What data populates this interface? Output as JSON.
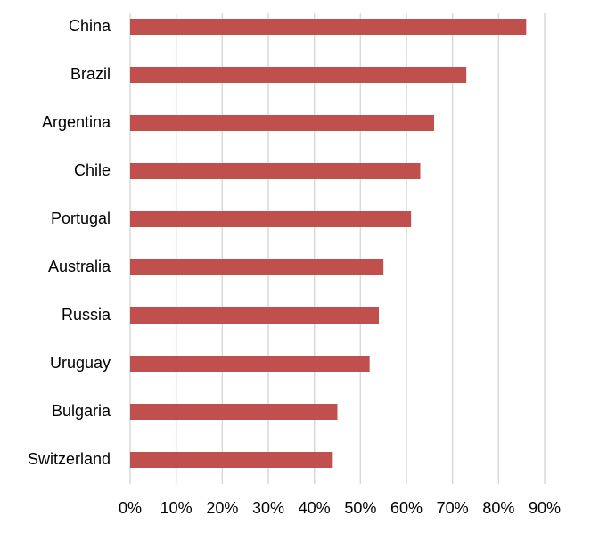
{
  "chart_data": {
    "type": "bar",
    "orientation": "horizontal",
    "categories": [
      "China",
      "Brazil",
      "Argentina",
      "Chile",
      "Portugal",
      "Australia",
      "Russia",
      "Uruguay",
      "Bulgaria",
      "Switzerland"
    ],
    "values": [
      86,
      73,
      66,
      63,
      61,
      55,
      54,
      52,
      45,
      44
    ],
    "color": "#c0504d",
    "xlim": [
      0,
      90
    ],
    "xticks": [
      {
        "value": 0,
        "label": "0%"
      },
      {
        "value": 10,
        "label": "10%"
      },
      {
        "value": 20,
        "label": "20%"
      },
      {
        "value": 30,
        "label": "30%"
      },
      {
        "value": 40,
        "label": "40%"
      },
      {
        "value": 50,
        "label": "50%"
      },
      {
        "value": 60,
        "label": "60%"
      },
      {
        "value": 70,
        "label": "70%"
      },
      {
        "value": 80,
        "label": "80%"
      },
      {
        "value": 90,
        "label": "90%"
      }
    ],
    "grid": true
  }
}
